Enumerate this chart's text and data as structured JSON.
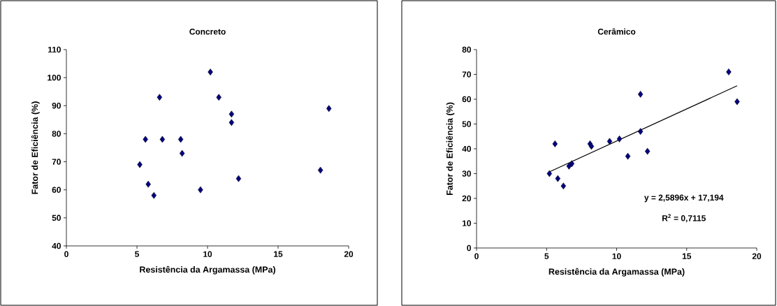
{
  "chart_data": [
    {
      "type": "scatter",
      "title": "Concreto",
      "xlabel": "Resistência da Argamassa (MPa)",
      "ylabel": "Fator de Eficiência (%)",
      "xlim": [
        0,
        20
      ],
      "xticks": [
        0,
        5,
        10,
        15,
        20
      ],
      "ylim": [
        40,
        110
      ],
      "yticks": [
        40,
        50,
        60,
        70,
        80,
        90,
        100,
        110
      ],
      "marker": "diamond",
      "grid": false,
      "series": [
        {
          "color": "#000080",
          "x": [
            10.2,
            6.6,
            10.8,
            11.7,
            11.7,
            18.6,
            5.6,
            6.8,
            8.1,
            8.2,
            5.2,
            18.0,
            12.2,
            5.8,
            9.5,
            6.2
          ],
          "values": [
            102,
            93,
            93,
            87,
            84,
            89,
            78,
            78,
            78,
            73,
            69,
            67,
            64,
            62,
            60,
            58
          ]
        }
      ]
    },
    {
      "type": "scatter",
      "title": "Cerâmico",
      "xlabel": "Resistência da Argamassa (MPa)",
      "ylabel": "Fator de Eficiência (%)",
      "xlim": [
        0,
        20
      ],
      "xticks": [
        0,
        5,
        10,
        15,
        20
      ],
      "ylim": [
        0,
        80
      ],
      "yticks": [
        0,
        10,
        20,
        30,
        40,
        50,
        60,
        70,
        80
      ],
      "marker": "diamond",
      "grid": false,
      "annotations": [
        "y = 2,5896x + 17,194",
        "R$^{2}$ = 0,7115"
      ],
      "series": [
        {
          "color": "#000080",
          "x": [
            5.2,
            5.6,
            5.8,
            6.2,
            6.6,
            6.8,
            8.1,
            8.2,
            9.5,
            10.2,
            10.8,
            11.7,
            11.7,
            12.2,
            18.0,
            18.6
          ],
          "values": [
            30,
            42,
            28,
            25,
            33,
            34,
            42,
            41,
            43,
            44,
            37,
            62,
            47,
            39,
            71,
            59
          ]
        },
        {
          "type": "line",
          "color": "#000000",
          "marker": "none",
          "x": [
            5.2,
            18.6
          ],
          "values": [
            30.7,
            65.4
          ]
        }
      ]
    }
  ]
}
